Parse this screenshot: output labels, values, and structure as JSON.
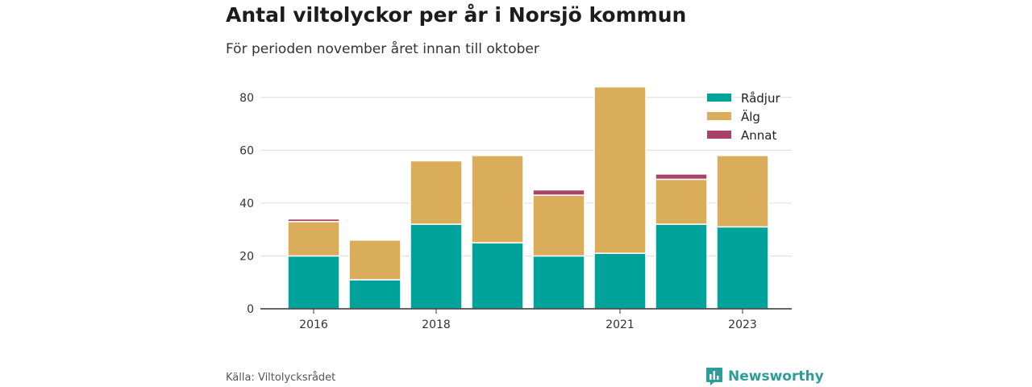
{
  "title": "Antal viltolyckor per år i Norsjö kommun",
  "subtitle": "För perioden november året innan till oktober",
  "source": "Källa: Viltolycksrådet",
  "brand": {
    "name": "Newsworthy",
    "icon": "newsworthy-logo-icon",
    "color": "#2d9d97"
  },
  "chart_data": {
    "type": "bar",
    "stacked": true,
    "categories": [
      "2016",
      "2017",
      "2018",
      "2019",
      "2020",
      "2021",
      "2022",
      "2023"
    ],
    "x_tick_labels": [
      "2016",
      "",
      "2018",
      "",
      "",
      "2021",
      "",
      "2023"
    ],
    "series": [
      {
        "name": "Rådjur",
        "color": "#00a39a",
        "values": [
          20,
          11,
          32,
          25,
          20,
          21,
          32,
          31
        ]
      },
      {
        "name": "Älg",
        "color": "#d9ad5a",
        "values": [
          13,
          15,
          24,
          33,
          23,
          63,
          17,
          27
        ]
      },
      {
        "name": "Annat",
        "color": "#a8426a",
        "values": [
          1,
          0,
          0,
          0,
          2,
          0,
          2,
          0
        ]
      }
    ],
    "ylim": [
      0,
      90
    ],
    "yticks": [
      0,
      20,
      40,
      60,
      80
    ],
    "grid": true,
    "legend": "top-right"
  }
}
